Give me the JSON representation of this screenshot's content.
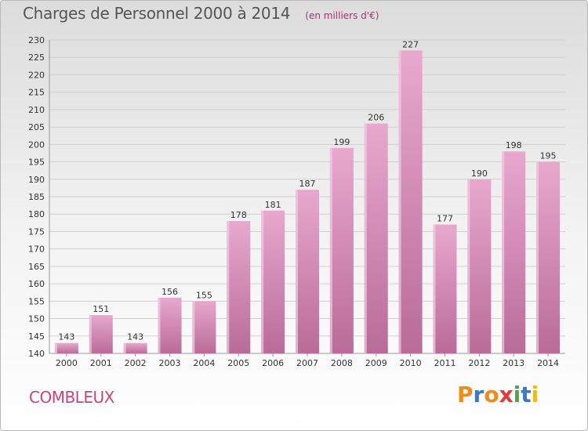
{
  "header": {
    "title": "Charges de Personnel 2000 à 2014",
    "subtitle": "(en milliers d'€)"
  },
  "footer": {
    "location": "COMBLEUX",
    "logo": {
      "text": "Proxiti",
      "letters": [
        {
          "ch": "P",
          "color": "#f08a1c"
        },
        {
          "ch": "r",
          "color": "#3a78c8"
        },
        {
          "ch": "o",
          "color": "#f08a1c"
        },
        {
          "ch": "x",
          "color": "#e03a3a"
        },
        {
          "ch": "i",
          "color": "#49a845"
        },
        {
          "ch": "t",
          "color": "#3a78c8"
        },
        {
          "ch": "i",
          "color": "#f0b820"
        }
      ]
    }
  },
  "colors": {
    "bar_top": "#e8a8ce",
    "bar_bottom": "#b86c98",
    "title": "#555555",
    "location": "#c8457c",
    "grid": "#cfcfcf",
    "axis_text": "#333333"
  },
  "chart_data": {
    "type": "bar",
    "title": "Charges de Personnel 2000 à 2014",
    "subtitle": "(en milliers d'€)",
    "categories": [
      "2000",
      "2001",
      "2002",
      "2003",
      "2004",
      "2005",
      "2006",
      "2007",
      "2008",
      "2009",
      "2010",
      "2011",
      "2012",
      "2013",
      "2014"
    ],
    "values": [
      143,
      151,
      143,
      156,
      155,
      178,
      181,
      187,
      199,
      206,
      227,
      177,
      190,
      198,
      195
    ],
    "ylim": [
      140,
      230
    ],
    "ytick_step": 5,
    "grid": true,
    "data_labels": true
  }
}
